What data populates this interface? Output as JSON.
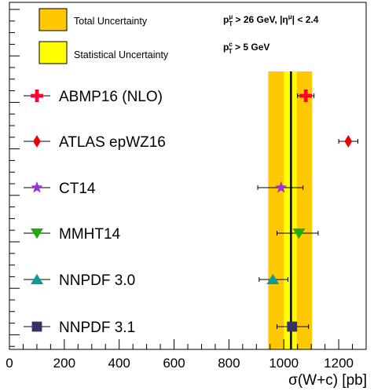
{
  "chart_data": {
    "type": "scatter",
    "title": "",
    "xlabel": "σ(W+c) [pb]",
    "ylabel": "",
    "xlim": [
      0,
      1300
    ],
    "x_ticks": [
      0,
      200,
      400,
      600,
      800,
      1000,
      1200
    ],
    "x_tick_labels": [
      "0",
      "200",
      "400",
      "600",
      "800",
      "1000",
      "1200"
    ],
    "grid": false,
    "measurement": {
      "central": 1026,
      "total_band": [
        943,
        1103
      ],
      "statistical_band": [
        1000,
        1047
      ]
    },
    "legend": {
      "total_label": "Total Uncertainty",
      "total_color": "#FFC800",
      "stat_label": "Statistical Uncertainty",
      "stat_color": "#FFFF00"
    },
    "cuts": [
      {
        "p": "p",
        "sub": "T",
        "sup": "μ",
        "rest": " > 26 GeV, |η",
        "rest_sup": "μ",
        "rest_end": "| < 2.4"
      },
      {
        "p": "p",
        "sub": "T",
        "sup": "c",
        "rest": " > 5 GeV",
        "rest_sup": "",
        "rest_end": ""
      }
    ],
    "series": [
      {
        "name": "ABMP16 (NLO)",
        "value": 1080,
        "err_minus": 30,
        "err_plus": 30,
        "marker": "cross",
        "color": "#FF0033"
      },
      {
        "name": "ATLAS epWZ16",
        "value": 1235,
        "err_minus": 35,
        "err_plus": 35,
        "marker": "diamond",
        "color": "#EE0000"
      },
      {
        "name": "CT14",
        "value": 990,
        "err_minus": 85,
        "err_plus": 80,
        "marker": "star",
        "color": "#9933CC"
      },
      {
        "name": "MMHT14",
        "value": 1055,
        "err_minus": 80,
        "err_plus": 70,
        "marker": "triangle-down",
        "color": "#22AA11"
      },
      {
        "name": "NNPDF 3.0",
        "value": 960,
        "err_minus": 50,
        "err_plus": 55,
        "marker": "triangle-up",
        "color": "#119999"
      },
      {
        "name": "NNPDF 3.1",
        "value": 1030,
        "err_minus": 55,
        "err_plus": 60,
        "marker": "square",
        "color": "#333366"
      }
    ]
  }
}
